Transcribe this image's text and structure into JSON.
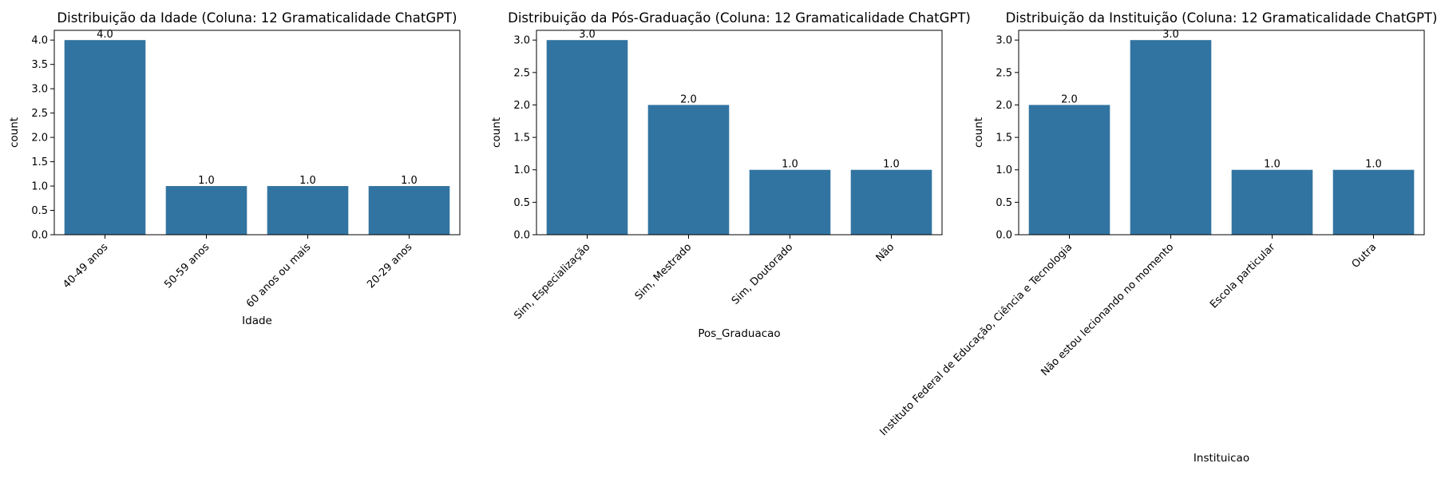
{
  "chart_data": [
    {
      "type": "bar",
      "title": "Distribuição da Idade (Coluna: 12 Gramaticalidade ChatGPT)",
      "xlabel": "Idade",
      "ylabel": "count",
      "categories": [
        "40-49 anos",
        "50-59 anos",
        "60 anos ou mais",
        "20-29 anos"
      ],
      "values": [
        4,
        1,
        1,
        1
      ],
      "data_labels": [
        "4.0",
        "1.0",
        "1.0",
        "1.0"
      ],
      "ylim": [
        0,
        4.2
      ],
      "yticks": [
        "0.0",
        "0.5",
        "1.0",
        "1.5",
        "2.0",
        "2.5",
        "3.0",
        "3.5",
        "4.0"
      ],
      "bar_color": "#3274a1",
      "grid": false,
      "legend": "none"
    },
    {
      "type": "bar",
      "title": "Distribuição da Pós-Graduação (Coluna: 12 Gramaticalidade ChatGPT)",
      "xlabel": "Pos_Graduacao",
      "ylabel": "count",
      "categories": [
        "Sim, Especialização",
        "Sim, Mestrado",
        "Sim, Doutorado",
        "Não"
      ],
      "values": [
        3,
        2,
        1,
        1
      ],
      "data_labels": [
        "3.0",
        "2.0",
        "1.0",
        "1.0"
      ],
      "ylim": [
        0,
        3.15
      ],
      "yticks": [
        "0.0",
        "0.5",
        "1.0",
        "1.5",
        "2.0",
        "2.5",
        "3.0"
      ],
      "bar_color": "#3274a1",
      "grid": false,
      "legend": "none"
    },
    {
      "type": "bar",
      "title": "Distribuição da Instituição (Coluna: 12 Gramaticalidade ChatGPT)",
      "xlabel": "Instituicao",
      "ylabel": "count",
      "categories": [
        "Instituto Federal de Educação, Ciência e Tecnologia",
        "Não estou lecionando no momento",
        "Escola particular",
        "Outra"
      ],
      "values": [
        2,
        3,
        1,
        1
      ],
      "data_labels": [
        "2.0",
        "3.0",
        "1.0",
        "1.0"
      ],
      "ylim": [
        0,
        3.15
      ],
      "yticks": [
        "0.0",
        "0.5",
        "1.0",
        "1.5",
        "2.0",
        "2.5",
        "3.0"
      ],
      "bar_color": "#3274a1",
      "grid": false,
      "legend": "none"
    }
  ]
}
